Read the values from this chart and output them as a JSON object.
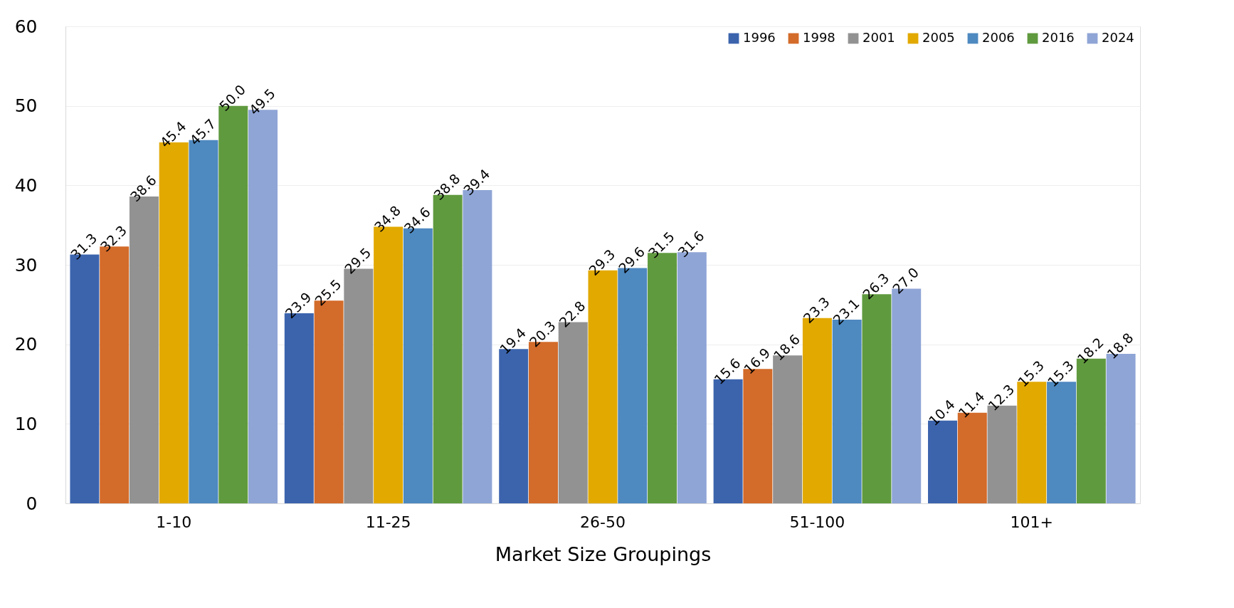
{
  "chart_data": {
    "type": "bar",
    "xlabel": "Market Size Groupings",
    "categories": [
      "1-10",
      "11-25",
      "26-50",
      "51-100",
      "101+"
    ],
    "series": [
      {
        "name": "1996",
        "color": "#3c64ad",
        "values": [
          31.3,
          23.9,
          19.4,
          15.6,
          10.4
        ],
        "value_labels": [
          "31.3",
          "23.9",
          "19.4",
          "15.6",
          "10.4"
        ]
      },
      {
        "name": "1998",
        "color": "#d36b2a",
        "values": [
          32.3,
          25.5,
          20.3,
          16.9,
          11.4
        ],
        "value_labels": [
          "32.3",
          "25.5",
          "20.3",
          "16.9",
          "11.4"
        ]
      },
      {
        "name": "2001",
        "color": "#929292",
        "values": [
          38.6,
          29.5,
          22.8,
          18.6,
          12.3
        ],
        "value_labels": [
          "38.6",
          "29.5",
          "22.8",
          "18.6",
          "12.3"
        ]
      },
      {
        "name": "2005",
        "color": "#e2a900",
        "values": [
          45.4,
          34.8,
          29.3,
          23.3,
          15.3
        ],
        "value_labels": [
          "45.4",
          "34.8",
          "29.3",
          "23.3",
          "15.3"
        ]
      },
      {
        "name": "2006",
        "color": "#4e89c0",
        "values": [
          45.7,
          34.6,
          29.6,
          23.1,
          15.3
        ],
        "value_labels": [
          "45.7",
          "34.6",
          "29.6",
          "23.1",
          "15.3"
        ]
      },
      {
        "name": "2016",
        "color": "#609a3f",
        "values": [
          50.0,
          38.8,
          31.5,
          26.3,
          18.2
        ],
        "value_labels": [
          "50.0",
          "38.8",
          "31.5",
          "26.3",
          "18.2"
        ]
      },
      {
        "name": "2024",
        "color": "#8fa5d6",
        "values": [
          49.5,
          39.4,
          31.6,
          27.0,
          18.8
        ],
        "value_labels": [
          "49.5",
          "39.4",
          "31.6",
          "27.0",
          "18.8"
        ]
      }
    ],
    "ylim": [
      0,
      60
    ],
    "yticks": [
      0,
      10,
      20,
      30,
      40,
      50,
      60
    ],
    "grid": "y",
    "legend": "top right"
  }
}
